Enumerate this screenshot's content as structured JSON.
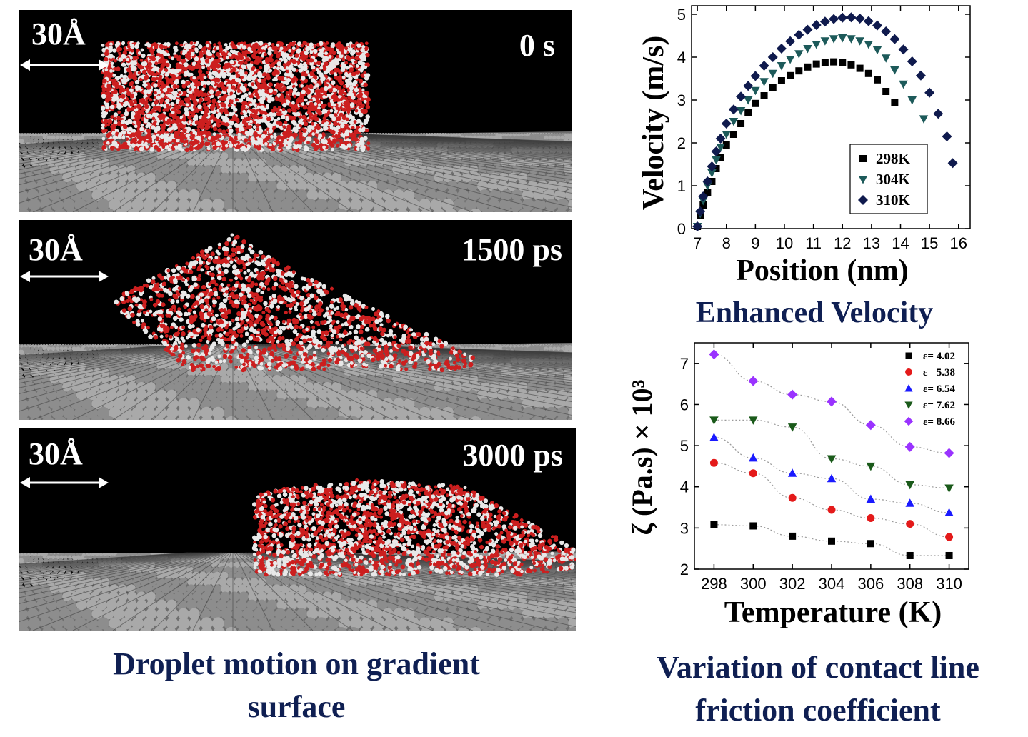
{
  "left": {
    "scale_label": "30Å",
    "panels": [
      {
        "time": "0 s"
      },
      {
        "time": "1500 ps"
      },
      {
        "time": "3000 ps"
      }
    ],
    "caption_line1": "Droplet motion on gradient",
    "caption_line2": "surface"
  },
  "right": {
    "caption_top": "Enhanced Velocity",
    "caption_bottom_line1": "Variation of contact line",
    "caption_bottom_line2": "friction coefficient"
  },
  "colors": {
    "caption": "#0f1f52",
    "water_red": "#cc1f1f",
    "water_white": "#e8e8e8",
    "substrate": "#9a9a9a"
  },
  "chart_data": [
    {
      "type": "scatter",
      "xlabel": "Position (nm)",
      "ylabel": "Velocity (m/s)",
      "xlim": [
        6.8,
        16.4
      ],
      "ylim": [
        0,
        5.2
      ],
      "xticks": [
        7,
        8,
        9,
        10,
        11,
        12,
        13,
        14,
        15,
        16
      ],
      "yticks": [
        0,
        1,
        2,
        3,
        4,
        5
      ],
      "legend_position": "bottom-right",
      "series": [
        {
          "name": "298K",
          "marker": "square",
          "color": "#000000",
          "x": [
            7.0,
            7.1,
            7.2,
            7.35,
            7.5,
            7.65,
            7.8,
            8.0,
            8.25,
            8.5,
            8.75,
            9.0,
            9.3,
            9.6,
            9.9,
            10.2,
            10.5,
            10.8,
            11.1,
            11.4,
            11.7,
            12.0,
            12.3,
            12.6,
            12.9,
            13.2,
            13.5,
            13.8
          ],
          "y": [
            0.05,
            0.3,
            0.55,
            0.85,
            1.1,
            1.4,
            1.65,
            1.95,
            2.2,
            2.45,
            2.7,
            2.92,
            3.1,
            3.3,
            3.45,
            3.57,
            3.68,
            3.77,
            3.84,
            3.88,
            3.89,
            3.87,
            3.82,
            3.74,
            3.62,
            3.47,
            3.2,
            2.94
          ]
        },
        {
          "name": "304K",
          "marker": "triangle-down",
          "color": "#1d5a5a",
          "x": [
            7.0,
            7.1,
            7.2,
            7.35,
            7.5,
            7.65,
            7.8,
            8.0,
            8.25,
            8.5,
            8.75,
            9.0,
            9.3,
            9.6,
            9.9,
            10.2,
            10.5,
            10.8,
            11.1,
            11.4,
            11.7,
            12.0,
            12.3,
            12.6,
            12.9,
            13.2,
            13.5,
            13.8,
            14.1,
            14.4,
            14.8
          ],
          "y": [
            0.05,
            0.35,
            0.65,
            1.0,
            1.3,
            1.6,
            1.9,
            2.2,
            2.5,
            2.75,
            3.0,
            3.22,
            3.43,
            3.62,
            3.8,
            3.95,
            4.08,
            4.2,
            4.3,
            4.38,
            4.43,
            4.45,
            4.43,
            4.38,
            4.3,
            4.17,
            3.98,
            3.7,
            3.37,
            3.0,
            2.56
          ]
        },
        {
          "name": "310K",
          "marker": "diamond",
          "color": "#0f1a4d",
          "x": [
            7.0,
            7.1,
            7.2,
            7.35,
            7.5,
            7.65,
            7.8,
            8.0,
            8.25,
            8.5,
            8.75,
            9.0,
            9.3,
            9.6,
            9.9,
            10.2,
            10.5,
            10.8,
            11.1,
            11.4,
            11.7,
            12.0,
            12.3,
            12.6,
            12.9,
            13.2,
            13.5,
            13.8,
            14.1,
            14.4,
            14.7,
            15.0,
            15.3,
            15.6,
            15.8
          ],
          "y": [
            0.05,
            0.4,
            0.75,
            1.1,
            1.45,
            1.8,
            2.1,
            2.45,
            2.78,
            3.08,
            3.33,
            3.56,
            3.8,
            4.0,
            4.2,
            4.37,
            4.52,
            4.64,
            4.75,
            4.83,
            4.89,
            4.92,
            4.93,
            4.9,
            4.84,
            4.74,
            4.6,
            4.42,
            4.18,
            3.9,
            3.57,
            3.17,
            2.68,
            2.15,
            1.53
          ]
        }
      ]
    },
    {
      "type": "line",
      "xlabel": "Temperature (K)",
      "ylabel": "ζ (Pa.s) × 10³",
      "xlim": [
        297,
        311
      ],
      "ylim": [
        2,
        7.5
      ],
      "xticks": [
        298,
        300,
        302,
        304,
        306,
        308,
        310
      ],
      "yticks": [
        2,
        3,
        4,
        5,
        6,
        7
      ],
      "legend_position": "top-right",
      "x": [
        298,
        300,
        302,
        304,
        306,
        308,
        310
      ],
      "series": [
        {
          "name": "ε= 4.02",
          "marker": "square",
          "color": "#000000",
          "values": [
            3.08,
            3.05,
            2.8,
            2.68,
            2.62,
            2.33,
            2.33
          ]
        },
        {
          "name": "ε= 5.38",
          "marker": "circle",
          "color": "#e41a1a",
          "values": [
            4.58,
            4.33,
            3.73,
            3.44,
            3.24,
            3.1,
            2.78
          ]
        },
        {
          "name": "ε= 6.54",
          "marker": "triangle-up",
          "color": "#1a1aff",
          "values": [
            5.2,
            4.7,
            4.33,
            4.2,
            3.7,
            3.6,
            3.37
          ]
        },
        {
          "name": "ε= 7.62",
          "marker": "triangle-down",
          "color": "#1a5a1a",
          "values": [
            5.62,
            5.62,
            5.45,
            4.68,
            4.5,
            4.05,
            3.97
          ]
        },
        {
          "name": "ε= 8.66",
          "marker": "diamond",
          "color": "#9a33ff",
          "values": [
            7.22,
            6.57,
            6.24,
            6.07,
            5.5,
            4.97,
            4.82
          ]
        }
      ]
    }
  ]
}
